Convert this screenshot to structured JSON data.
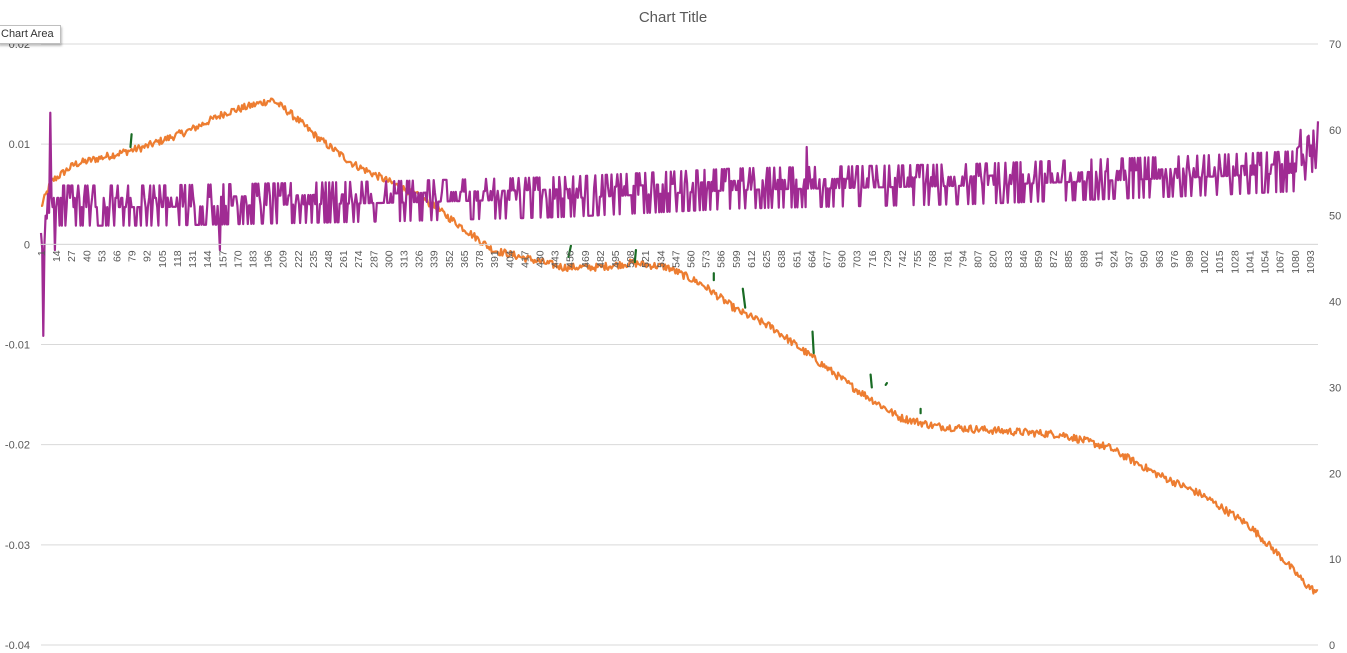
{
  "chart_data": {
    "type": "line",
    "title": "Chart Title",
    "tooltip": "Chart Area",
    "primary_axis": {
      "ticks": [
        -0.04,
        -0.03,
        -0.02,
        -0.01,
        0,
        0.01,
        0.02
      ],
      "labels": [
        "-0.04",
        "-0.03",
        "-0.02",
        "-0.01",
        "0",
        "0.01",
        "0.02"
      ],
      "range": [
        -0.04,
        0.02
      ]
    },
    "secondary_axis": {
      "ticks": [
        0,
        10,
        20,
        30,
        40,
        50,
        60,
        70
      ],
      "labels": [
        "0",
        "10",
        "20",
        "30",
        "40",
        "50",
        "60",
        "70"
      ],
      "range": [
        0,
        70
      ]
    },
    "x_axis": {
      "range": [
        1,
        1100
      ],
      "tick_labels": [
        "1",
        "14",
        "27",
        "40",
        "53",
        "66",
        "79",
        "92",
        "105",
        "118",
        "131",
        "144",
        "157",
        "170",
        "183",
        "196",
        "209",
        "222",
        "235",
        "248",
        "261",
        "274",
        "287",
        "300",
        "313",
        "326",
        "339",
        "352",
        "365",
        "378",
        "391",
        "404",
        "417",
        "430",
        "443",
        "456",
        "469",
        "482",
        "495",
        "508",
        "521",
        "534",
        "547",
        "560",
        "573",
        "586",
        "599",
        "612",
        "625",
        "638",
        "651",
        "664",
        "677",
        "690",
        "703",
        "716",
        "729",
        "742",
        "755",
        "768",
        "781",
        "794",
        "807",
        "820",
        "833",
        "846",
        "859",
        "872",
        "885",
        "898",
        "911",
        "924",
        "937",
        "950",
        "963",
        "976",
        "989",
        "1002",
        "1015",
        "1028",
        "1041",
        "1054",
        "1067",
        "1080",
        "1093"
      ]
    },
    "colors": {
      "orange": "#ED7D31",
      "purple": "#A02B93",
      "green": "#196B24",
      "grid": "#D9D9D9",
      "text": "#595959"
    },
    "series": [
      {
        "axis": "secondary",
        "color": "#ED7D31",
        "points": [
          [
            1,
            51
          ],
          [
            10,
            54
          ],
          [
            30,
            56
          ],
          [
            60,
            57
          ],
          [
            90,
            58
          ],
          [
            130,
            60
          ],
          [
            160,
            62
          ],
          [
            200,
            63.5
          ],
          [
            215,
            62
          ],
          [
            240,
            59
          ],
          [
            270,
            56
          ],
          [
            300,
            54
          ],
          [
            330,
            52
          ],
          [
            360,
            49
          ],
          [
            390,
            46
          ],
          [
            420,
            45
          ],
          [
            450,
            44
          ],
          [
            480,
            44
          ],
          [
            510,
            44.5
          ],
          [
            540,
            44
          ],
          [
            570,
            42
          ],
          [
            600,
            39
          ],
          [
            630,
            37
          ],
          [
            660,
            34
          ],
          [
            700,
            30
          ],
          [
            740,
            26.5
          ],
          [
            770,
            25.5
          ],
          [
            820,
            25
          ],
          [
            880,
            24.5
          ],
          [
            920,
            23
          ],
          [
            960,
            20
          ],
          [
            1000,
            17.5
          ],
          [
            1040,
            14
          ],
          [
            1070,
            10
          ],
          [
            1090,
            7
          ],
          [
            1100,
            6
          ]
        ],
        "noise": 0.45
      },
      {
        "axis": "secondary",
        "color": "#A02B93",
        "points": [
          [
            1,
            48
          ],
          [
            10,
            51
          ],
          [
            100,
            51
          ],
          [
            300,
            51.5
          ],
          [
            450,
            52
          ],
          [
            600,
            53
          ],
          [
            800,
            53.5
          ],
          [
            1000,
            54.5
          ],
          [
            1080,
            55
          ],
          [
            1100,
            58
          ]
        ],
        "noise": 1.8,
        "spikes": [
          [
            3,
            36
          ],
          [
            5,
            50
          ],
          [
            9,
            62
          ],
          [
            13,
            46
          ],
          [
            155,
            46
          ],
          [
            660,
            58
          ],
          [
            1085,
            60
          ],
          [
            1100,
            61
          ]
        ]
      },
      {
        "axis": "secondary",
        "color": "#196B24",
        "segments": [
          [
            [
              78,
              58
            ],
            [
              79,
              59.5
            ]
          ],
          [
            [
              455,
              45.2
            ],
            [
              457,
              46.5
            ]
          ],
          [
            [
              512,
              44.6
            ],
            [
              513,
              46
            ]
          ],
          [
            [
              580,
              42.5
            ],
            [
              580,
              43.3
            ]
          ],
          [
            [
              605,
              41.5
            ],
            [
              607,
              39.3
            ]
          ],
          [
            [
              665,
              36.5
            ],
            [
              666,
              34
            ]
          ],
          [
            [
              715,
              31.5
            ],
            [
              716,
              30
            ]
          ],
          [
            [
              728,
              30.3
            ],
            [
              729,
              30.5
            ]
          ],
          [
            [
              758,
              27
            ],
            [
              758,
              27.5
            ]
          ]
        ]
      }
    ]
  }
}
